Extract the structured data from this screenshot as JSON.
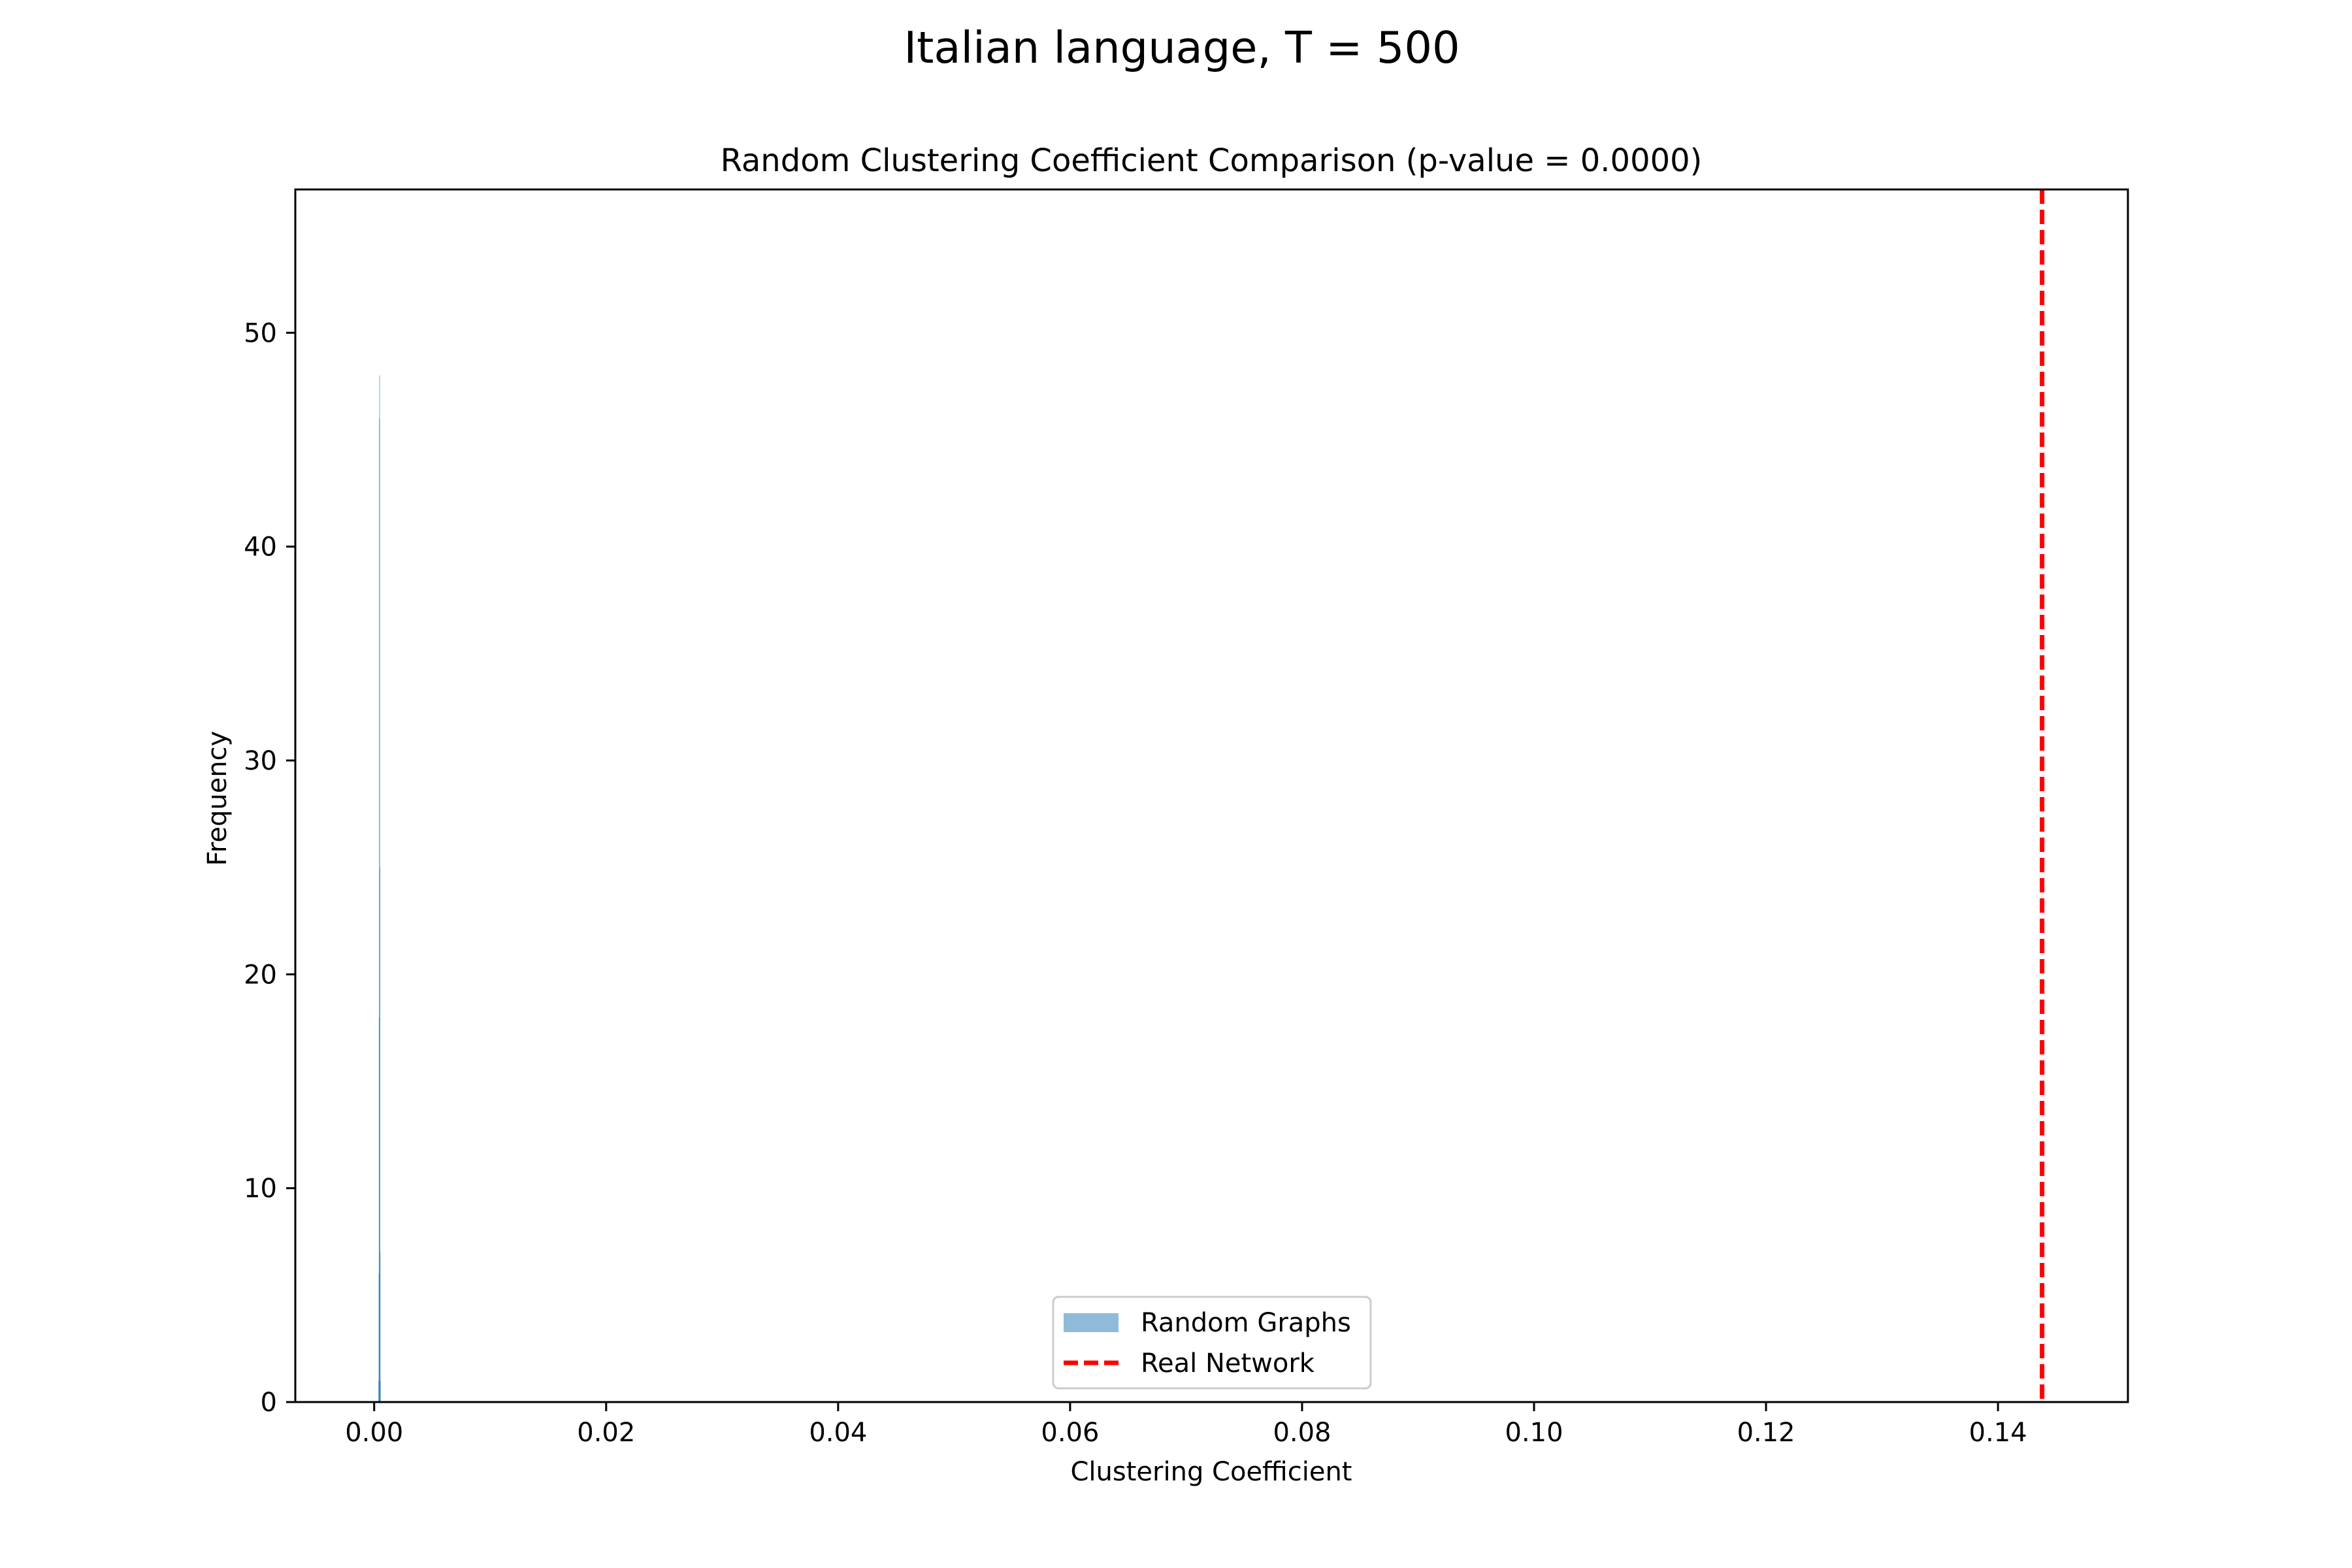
{
  "figure": {
    "suptitle": "Italian language, T = 500"
  },
  "chart_data": {
    "type": "bar",
    "title": "Random Clustering Coefficient Comparison (p-value = 0.0000)",
    "xlabel": "Clustering Coefficient",
    "ylabel": "Frequency",
    "xlim": [
      -0.0068,
      0.1512
    ],
    "ylim": [
      0,
      56.7
    ],
    "xticks": [
      0.0,
      0.02,
      0.04,
      0.06,
      0.08,
      0.1,
      0.12,
      0.14
    ],
    "xtick_labels": [
      "0.00",
      "0.02",
      "0.04",
      "0.06",
      "0.08",
      "0.10",
      "0.12",
      "0.14"
    ],
    "yticks": [
      0,
      10,
      20,
      30,
      40,
      50
    ],
    "ytick_labels": [
      "0",
      "10",
      "20",
      "30",
      "40",
      "50"
    ],
    "histogram": {
      "name": "Random Graphs",
      "color": "#1f77b4",
      "alpha": 0.5,
      "bin_width": 2e-05,
      "bins": [
        {
          "x": 0.00036,
          "count": 1
        },
        {
          "x": 0.00038,
          "count": 6
        },
        {
          "x": 0.0004,
          "count": 18
        },
        {
          "x": 0.00042,
          "count": 46
        },
        {
          "x": 0.00044,
          "count": 48
        },
        {
          "x": 0.00046,
          "count": 25
        },
        {
          "x": 0.00048,
          "count": 7
        },
        {
          "x": 0.0005,
          "count": 1
        }
      ]
    },
    "reference_line": {
      "name": "Real Network",
      "x": 0.1438,
      "color": "#ff0000",
      "style": "dashed"
    },
    "legend": {
      "placement": "lower-center",
      "entries": [
        "Random Graphs",
        "Real Network"
      ]
    },
    "grid": false
  }
}
